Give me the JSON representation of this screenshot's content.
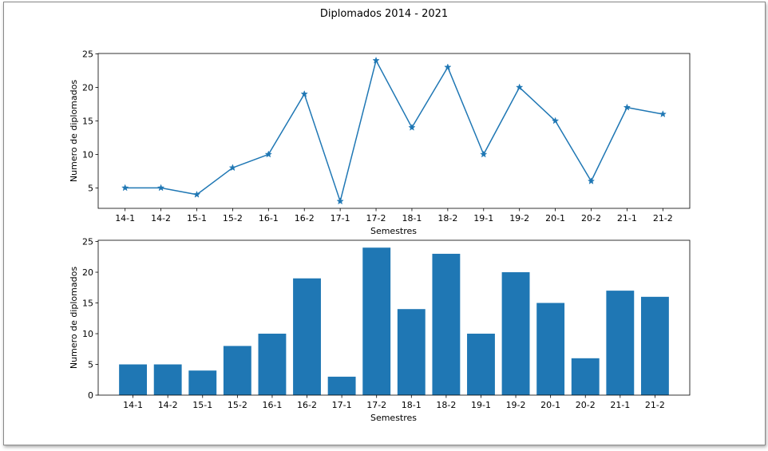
{
  "figure": {
    "title": "Diplomados 2014  - 2021"
  },
  "chart_data": [
    {
      "type": "line",
      "marker": "star",
      "color": "#1f77b4",
      "categories": [
        "14-1",
        "14-2",
        "15-1",
        "15-2",
        "16-1",
        "16-2",
        "17-1",
        "17-2",
        "18-1",
        "18-2",
        "19-1",
        "19-2",
        "20-1",
        "20-2",
        "21-1",
        "21-2"
      ],
      "values": [
        5,
        5,
        4,
        8,
        10,
        19,
        3,
        24,
        14,
        23,
        10,
        20,
        15,
        6,
        17,
        16
      ],
      "xlabel": "Semestres",
      "ylabel": "Numero de diplomados",
      "yticks": [
        5,
        10,
        15,
        20,
        25
      ],
      "ylim": [
        1.95,
        25.05
      ],
      "grid": false
    },
    {
      "type": "bar",
      "color": "#1f77b4",
      "categories": [
        "14-1",
        "14-2",
        "15-1",
        "15-2",
        "16-1",
        "16-2",
        "17-1",
        "17-2",
        "18-1",
        "18-2",
        "19-1",
        "19-2",
        "20-1",
        "20-2",
        "21-1",
        "21-2"
      ],
      "values": [
        5,
        5,
        4,
        8,
        10,
        19,
        3,
        24,
        14,
        23,
        10,
        20,
        15,
        6,
        17,
        16
      ],
      "xlabel": "Semestres",
      "ylabel": "Numero de diplomados",
      "yticks": [
        0,
        5,
        10,
        15,
        20,
        25
      ],
      "ylim": [
        0,
        25.2
      ],
      "grid": false
    }
  ]
}
